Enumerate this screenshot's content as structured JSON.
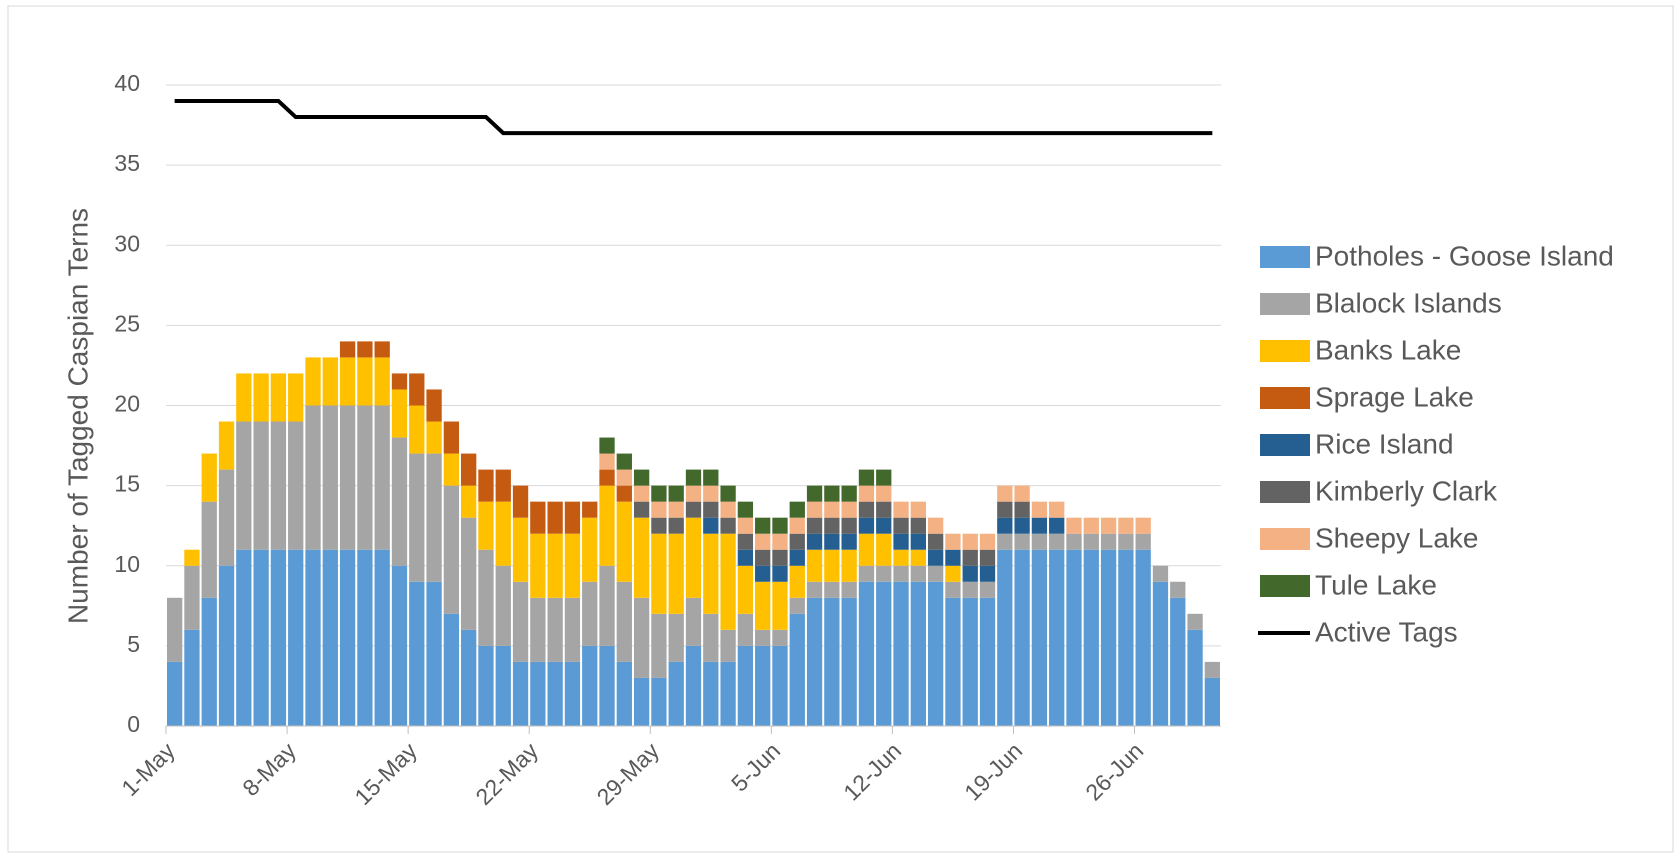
{
  "chart_data": {
    "type": "bar",
    "stacked": true,
    "y_label": "Number of Tagged Caspian Terns",
    "categories": [
      "1-May",
      null,
      null,
      null,
      null,
      null,
      null,
      "8-May",
      null,
      null,
      null,
      null,
      null,
      null,
      "15-May",
      null,
      null,
      null,
      null,
      null,
      null,
      "22-May",
      null,
      null,
      null,
      null,
      null,
      null,
      "29-May",
      null,
      null,
      null,
      null,
      null,
      null,
      "5-Jun",
      null,
      null,
      null,
      null,
      null,
      null,
      "12-Jun",
      null,
      null,
      null,
      null,
      null,
      null,
      "19-Jun",
      null,
      null,
      null,
      null,
      null,
      null,
      "26-Jun",
      null,
      null,
      null,
      null
    ],
    "ylim": [
      0,
      40
    ],
    "yticks": [
      0,
      5,
      10,
      15,
      20,
      25,
      30,
      35,
      40
    ],
    "grid": true,
    "legend": "right",
    "series": [
      {
        "name": "Potholes - Goose Island",
        "color": "#5b9bd5",
        "values": [
          4,
          6,
          8,
          10,
          11,
          11,
          11,
          11,
          11,
          11,
          11,
          11,
          11,
          10,
          9,
          9,
          7,
          6,
          5,
          5,
          4,
          4,
          4,
          4,
          5,
          5,
          4,
          3,
          3,
          4,
          5,
          4,
          4,
          5,
          5,
          5,
          7,
          8,
          8,
          8,
          9,
          9,
          9,
          9,
          9,
          8,
          8,
          8,
          11,
          11,
          11,
          11,
          11,
          11,
          11,
          11,
          11,
          9,
          8,
          6,
          3
        ]
      },
      {
        "name": "Blalock Islands",
        "color": "#a5a5a5",
        "values": [
          4,
          4,
          6,
          6,
          8,
          8,
          8,
          8,
          9,
          9,
          9,
          9,
          9,
          8,
          8,
          8,
          8,
          7,
          6,
          5,
          5,
          4,
          4,
          4,
          4,
          5,
          5,
          5,
          4,
          3,
          3,
          3,
          2,
          2,
          1,
          1,
          1,
          1,
          1,
          1,
          1,
          1,
          1,
          1,
          1,
          1,
          1,
          1,
          1,
          1,
          1,
          1,
          1,
          1,
          1,
          1,
          1,
          1,
          1,
          1,
          1
        ]
      },
      {
        "name": "Banks Lake",
        "color": "#ffc000",
        "values": [
          0,
          1,
          3,
          3,
          3,
          3,
          3,
          3,
          3,
          3,
          3,
          3,
          3,
          3,
          3,
          2,
          2,
          2,
          3,
          4,
          4,
          4,
          4,
          4,
          4,
          5,
          5,
          5,
          5,
          5,
          5,
          5,
          6,
          3,
          3,
          3,
          2,
          2,
          2,
          2,
          2,
          2,
          1,
          1,
          0,
          1,
          0,
          0,
          0,
          0,
          0,
          0,
          0,
          0,
          0,
          0,
          0,
          0,
          0,
          0,
          0
        ]
      },
      {
        "name": "Sprage Lake",
        "color": "#c55a11",
        "values": [
          0,
          0,
          0,
          0,
          0,
          0,
          0,
          0,
          0,
          0,
          1,
          1,
          1,
          1,
          2,
          2,
          2,
          2,
          2,
          2,
          2,
          2,
          2,
          2,
          1,
          1,
          1,
          0,
          0,
          0,
          0,
          0,
          0,
          0,
          0,
          0,
          0,
          0,
          0,
          0,
          0,
          0,
          0,
          0,
          0,
          0,
          0,
          0,
          0,
          0,
          0,
          0,
          0,
          0,
          0,
          0,
          0,
          0,
          0,
          0,
          0
        ]
      },
      {
        "name": "Rice Island",
        "color": "#255e91",
        "values": [
          0,
          0,
          0,
          0,
          0,
          0,
          0,
          0,
          0,
          0,
          0,
          0,
          0,
          0,
          0,
          0,
          0,
          0,
          0,
          0,
          0,
          0,
          0,
          0,
          0,
          0,
          0,
          0,
          0,
          0,
          0,
          1,
          0,
          1,
          1,
          1,
          1,
          1,
          1,
          1,
          1,
          1,
          1,
          1,
          1,
          1,
          1,
          1,
          1,
          1,
          1,
          1,
          0,
          0,
          0,
          0,
          0,
          0,
          0,
          0,
          0
        ]
      },
      {
        "name": "Kimberly Clark",
        "color": "#636363",
        "values": [
          0,
          0,
          0,
          0,
          0,
          0,
          0,
          0,
          0,
          0,
          0,
          0,
          0,
          0,
          0,
          0,
          0,
          0,
          0,
          0,
          0,
          0,
          0,
          0,
          0,
          0,
          0,
          1,
          1,
          1,
          1,
          1,
          1,
          1,
          1,
          1,
          1,
          1,
          1,
          1,
          1,
          1,
          1,
          1,
          1,
          0,
          1,
          1,
          1,
          1,
          0,
          0,
          0,
          0,
          0,
          0,
          0,
          0,
          0,
          0,
          0
        ]
      },
      {
        "name": "Sheepy Lake",
        "color": "#f4b183",
        "values": [
          0,
          0,
          0,
          0,
          0,
          0,
          0,
          0,
          0,
          0,
          0,
          0,
          0,
          0,
          0,
          0,
          0,
          0,
          0,
          0,
          0,
          0,
          0,
          0,
          0,
          1,
          1,
          1,
          1,
          1,
          1,
          1,
          1,
          1,
          1,
          1,
          1,
          1,
          1,
          1,
          1,
          1,
          1,
          1,
          1,
          1,
          1,
          1,
          1,
          1,
          1,
          1,
          1,
          1,
          1,
          1,
          1,
          0,
          0,
          0,
          0
        ]
      },
      {
        "name": "Tule Lake",
        "color": "#43682b",
        "values": [
          0,
          0,
          0,
          0,
          0,
          0,
          0,
          0,
          0,
          0,
          0,
          0,
          0,
          0,
          0,
          0,
          0,
          0,
          0,
          0,
          0,
          0,
          0,
          0,
          0,
          1,
          1,
          1,
          1,
          1,
          1,
          1,
          1,
          1,
          1,
          1,
          1,
          1,
          1,
          1,
          1,
          1,
          0,
          0,
          0,
          0,
          0,
          0,
          0,
          0,
          0,
          0,
          0,
          0,
          0,
          0,
          0,
          0,
          0,
          0,
          0
        ]
      },
      {
        "name": "Active Tags",
        "type": "line",
        "color": "#000000",
        "values": [
          39,
          39,
          39,
          39,
          39,
          39,
          39,
          38,
          38,
          38,
          38,
          38,
          38,
          38,
          38,
          38,
          38,
          38,
          38,
          37,
          37,
          37,
          37,
          37,
          37,
          37,
          37,
          37,
          37,
          37,
          37,
          37,
          37,
          37,
          37,
          37,
          37,
          37,
          37,
          37,
          37,
          37,
          37,
          37,
          37,
          37,
          37,
          37,
          37,
          37,
          37,
          37,
          37,
          37,
          37,
          37,
          37,
          37,
          37,
          37,
          37
        ]
      }
    ]
  }
}
